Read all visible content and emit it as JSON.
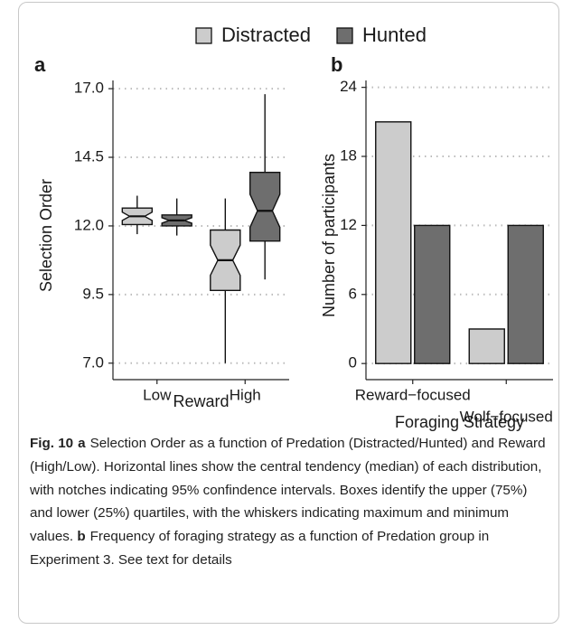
{
  "chart_data": [
    {
      "type": "box",
      "label": "a",
      "ylabel": "Selection Order",
      "xlabel": "Reward",
      "categories": [
        "Low",
        "High"
      ],
      "ylim": [
        6.4,
        17.3
      ],
      "yticks": [
        {
          "value": 7,
          "label": "7.0"
        },
        9.5,
        {
          "value": 12,
          "label": "12.0"
        },
        14.5,
        {
          "value": 17,
          "label": "17.0"
        }
      ],
      "grid": true,
      "series": [
        {
          "name": "Distracted",
          "color": "#cccccc",
          "boxes": [
            {
              "min": 11.7,
              "q1": 12.05,
              "median": 12.35,
              "q3": 12.65,
              "max": 13.1,
              "notch": [
                12.2,
                12.5
              ]
            },
            {
              "min": 7.0,
              "q1": 9.65,
              "median": 10.75,
              "q3": 11.85,
              "max": 13.0,
              "notch": [
                10.2,
                11.3
              ]
            }
          ]
        },
        {
          "name": "Hunted",
          "color": "#6e6e6e",
          "boxes": [
            {
              "min": 11.65,
              "q1": 12.0,
              "median": 12.2,
              "q3": 12.4,
              "max": 13.0,
              "notch": [
                12.1,
                12.3
              ]
            },
            {
              "min": 10.05,
              "q1": 11.45,
              "median": 12.55,
              "q3": 13.95,
              "max": 16.8,
              "notch": [
                11.95,
                13.15
              ]
            }
          ]
        }
      ]
    },
    {
      "type": "bar",
      "label": "b",
      "ylabel": "Number of participants",
      "xlabel": "Foraging Strategy",
      "categories": [
        "Reward−focused",
        "Wolf−focused"
      ],
      "ylim": [
        -1.4,
        24.6
      ],
      "yticks": [
        0,
        6,
        12,
        18,
        24
      ],
      "grid": true,
      "series": [
        {
          "name": "Distracted",
          "color": "#cccccc",
          "values": [
            21,
            3
          ]
        },
        {
          "name": "Hunted",
          "color": "#6e6e6e",
          "values": [
            12,
            12
          ]
        }
      ]
    }
  ],
  "caption": {
    "figure": "Fig. 10",
    "parts": [
      {
        "label": "a",
        "text": "Selection Order as a function of Predation (Distracted/Hunted) and Reward (High/Low). Horizontal lines show the central tendency (median) of each distribution, with notches indicating 95% confindence intervals. Boxes identify the upper (75%) and lower (25%) quartiles, with the whiskers indicating maximum and minimum values."
      },
      {
        "label": "b",
        "text": "Frequency of foraging strategy as a function of Predation group in Experiment 3. See text for details"
      }
    ]
  }
}
